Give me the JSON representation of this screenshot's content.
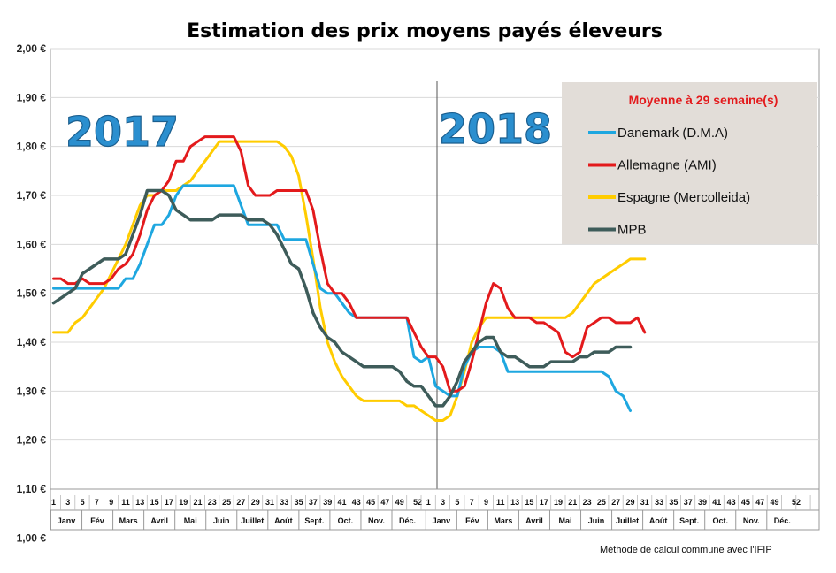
{
  "chart_data": {
    "type": "line",
    "title": "Estimation des prix moyens payés éleveurs",
    "y_tick_labels": [
      "1,00 €",
      "1,10 €",
      "1,20 €",
      "1,30 €",
      "1,40 €",
      "1,50 €",
      "1,60 €",
      "1,70 €",
      "1,80 €",
      "1,90 €",
      "2,00 €"
    ],
    "ylim": [
      1.1,
      2.0
    ],
    "year_labels": [
      "2017",
      "2018"
    ],
    "week_labels_2017": [
      "1",
      "3",
      "5",
      "7",
      "9",
      "11",
      "13",
      "15",
      "17",
      "19",
      "21",
      "23",
      "25",
      "27",
      "29",
      "31",
      "33",
      "35",
      "37",
      "39",
      "41",
      "43",
      "45",
      "47",
      "49",
      "52"
    ],
    "week_labels_2018": [
      "1",
      "3",
      "5",
      "7",
      "9",
      "11",
      "13",
      "15",
      "17",
      "19",
      "21",
      "23",
      "25",
      "27",
      "29",
      "31",
      "33",
      "35",
      "37",
      "39",
      "41",
      "43",
      "45",
      "47",
      "49",
      "52"
    ],
    "month_labels_2017": [
      "Janv",
      "Fév",
      "Mars",
      "Avril",
      "Mai",
      "Juin",
      "Juillet",
      "Août",
      "Sept.",
      "Oct.",
      "Nov.",
      "Déc."
    ],
    "month_labels_2018": [
      "Janv",
      "Fév",
      "Mars",
      "Avril",
      "Mai",
      "Juin",
      "Juillet",
      "Août",
      "Sept.",
      "Oct.",
      "Nov.",
      "Déc."
    ],
    "legend_title": "Moyenne à  29 semaine(s)",
    "legend_position": "top-right",
    "note": "Méthode de calcul commune avec l'IFIP",
    "series": [
      {
        "name": "Danemark (D.M.A)",
        "color": "#1ea7e0",
        "values": [
          1.51,
          1.51,
          1.51,
          1.51,
          1.51,
          1.51,
          1.51,
          1.51,
          1.51,
          1.51,
          1.53,
          1.53,
          1.56,
          1.6,
          1.64,
          1.64,
          1.66,
          1.7,
          1.72,
          1.72,
          1.72,
          1.72,
          1.72,
          1.72,
          1.72,
          1.72,
          1.68,
          1.64,
          1.64,
          1.64,
          1.64,
          1.64,
          1.61,
          1.61,
          1.61,
          1.61,
          1.56,
          1.51,
          1.5,
          1.5,
          1.48,
          1.46,
          1.45,
          1.45,
          1.45,
          1.45,
          1.45,
          1.45,
          1.45,
          1.45,
          1.37,
          1.36,
          1.37,
          1.31,
          1.3,
          1.29,
          1.29,
          1.35,
          1.38,
          1.39,
          1.39,
          1.39,
          1.38,
          1.34,
          1.34,
          1.34,
          1.34,
          1.34,
          1.34,
          1.34,
          1.34,
          1.34,
          1.34,
          1.34,
          1.34,
          1.34,
          1.34,
          1.33,
          1.3,
          1.29,
          1.26
        ]
      },
      {
        "name": "Allemagne (AMI)",
        "color": "#e31a1c",
        "values": [
          1.53,
          1.53,
          1.52,
          1.52,
          1.53,
          1.52,
          1.52,
          1.52,
          1.53,
          1.55,
          1.56,
          1.58,
          1.62,
          1.67,
          1.7,
          1.71,
          1.73,
          1.77,
          1.77,
          1.8,
          1.81,
          1.82,
          1.82,
          1.82,
          1.82,
          1.82,
          1.79,
          1.72,
          1.7,
          1.7,
          1.7,
          1.71,
          1.71,
          1.71,
          1.71,
          1.71,
          1.67,
          1.59,
          1.52,
          1.5,
          1.5,
          1.48,
          1.45,
          1.45,
          1.45,
          1.45,
          1.45,
          1.45,
          1.45,
          1.45,
          1.42,
          1.39,
          1.37,
          1.37,
          1.35,
          1.3,
          1.3,
          1.31,
          1.36,
          1.42,
          1.48,
          1.52,
          1.51,
          1.47,
          1.45,
          1.45,
          1.45,
          1.44,
          1.44,
          1.43,
          1.42,
          1.38,
          1.37,
          1.38,
          1.43,
          1.44,
          1.45,
          1.45,
          1.44,
          1.44,
          1.44,
          1.45,
          1.42
        ]
      },
      {
        "name": "Espagne (Mercolleida)",
        "color": "#ffcc00",
        "values": [
          1.42,
          1.42,
          1.42,
          1.44,
          1.45,
          1.47,
          1.49,
          1.51,
          1.54,
          1.57,
          1.6,
          1.64,
          1.68,
          1.7,
          1.7,
          1.71,
          1.71,
          1.71,
          1.72,
          1.73,
          1.75,
          1.77,
          1.79,
          1.81,
          1.81,
          1.81,
          1.81,
          1.81,
          1.81,
          1.81,
          1.81,
          1.81,
          1.8,
          1.78,
          1.74,
          1.66,
          1.57,
          1.47,
          1.4,
          1.36,
          1.33,
          1.31,
          1.29,
          1.28,
          1.28,
          1.28,
          1.28,
          1.28,
          1.28,
          1.27,
          1.27,
          1.26,
          1.25,
          1.24,
          1.24,
          1.25,
          1.29,
          1.34,
          1.4,
          1.43,
          1.45,
          1.45,
          1.45,
          1.45,
          1.45,
          1.45,
          1.45,
          1.45,
          1.45,
          1.45,
          1.45,
          1.45,
          1.46,
          1.48,
          1.5,
          1.52,
          1.53,
          1.54,
          1.55,
          1.56,
          1.57,
          1.57,
          1.57
        ]
      },
      {
        "name": "MPB",
        "color": "#3e5c5a",
        "values": [
          1.48,
          1.49,
          1.5,
          1.51,
          1.54,
          1.55,
          1.56,
          1.57,
          1.57,
          1.57,
          1.58,
          1.62,
          1.66,
          1.71,
          1.71,
          1.71,
          1.7,
          1.67,
          1.66,
          1.65,
          1.65,
          1.65,
          1.65,
          1.66,
          1.66,
          1.66,
          1.66,
          1.65,
          1.65,
          1.65,
          1.64,
          1.62,
          1.59,
          1.56,
          1.55,
          1.51,
          1.46,
          1.43,
          1.41,
          1.4,
          1.38,
          1.37,
          1.36,
          1.35,
          1.35,
          1.35,
          1.35,
          1.35,
          1.34,
          1.32,
          1.31,
          1.31,
          1.29,
          1.27,
          1.27,
          1.29,
          1.32,
          1.36,
          1.38,
          1.4,
          1.41,
          1.41,
          1.38,
          1.37,
          1.37,
          1.36,
          1.35,
          1.35,
          1.35,
          1.36,
          1.36,
          1.36,
          1.36,
          1.37,
          1.37,
          1.38,
          1.38,
          1.38,
          1.39,
          1.39,
          1.39
        ]
      }
    ]
  }
}
